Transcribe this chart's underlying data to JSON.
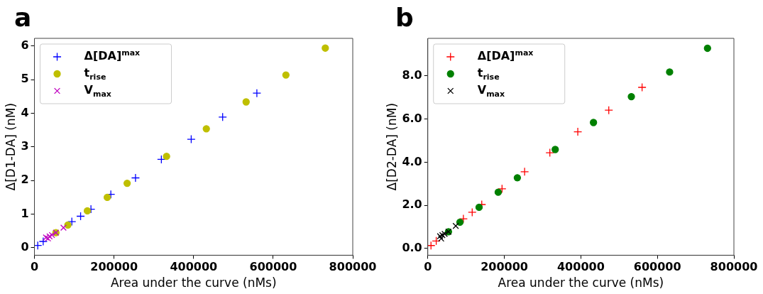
{
  "chart_data": [
    {
      "type": "scatter",
      "title": "a",
      "xlabel": "Area under the curve (nMs)",
      "ylabel": "Δ[D1-DA] (nM)",
      "xlim": [
        0,
        800000
      ],
      "ylim": [
        -0.22,
        6.23
      ],
      "xticks": [
        0,
        200000,
        400000,
        600000,
        800000
      ],
      "yticks": [
        0,
        1,
        2,
        3,
        4,
        5,
        6
      ],
      "grid": false,
      "legend": "top left",
      "series": [
        {
          "name": "Δ[DA]$^{max}$",
          "color": "#0000ff",
          "marker": "plus",
          "x": [
            8300,
            22000,
            94000,
            116000,
            142000,
            192000,
            254000,
            319000,
            394000,
            473000,
            559000
          ],
          "values": [
            0.07,
            0.19,
            0.78,
            0.94,
            1.15,
            1.59,
            2.08,
            2.63,
            3.23,
            3.89,
            4.6
          ]
        },
        {
          "name": "t$_{rise}$",
          "color": "#bfbf00",
          "marker": "circle",
          "x": [
            54000,
            84000,
            133000,
            183000,
            233000,
            332000,
            432000,
            532000,
            632000,
            731000
          ],
          "values": [
            0.45,
            0.68,
            1.1,
            1.5,
            1.92,
            2.72,
            3.54,
            4.34,
            5.14,
            5.94
          ]
        },
        {
          "name": "V$_{max}$",
          "color": "#bf00bf",
          "marker": "cross",
          "x": [
            29000,
            34000,
            38000,
            44000,
            54000,
            73000
          ],
          "values": [
            0.31,
            0.28,
            0.34,
            0.38,
            0.45,
            0.6
          ]
        }
      ]
    },
    {
      "type": "scatter",
      "title": "b",
      "xlabel": "Area under the curve (nMs)",
      "ylabel": "Δ[D2-DA] (nM)",
      "xlim": [
        0,
        800000
      ],
      "ylim": [
        -0.31,
        9.74
      ],
      "xticks": [
        0,
        200000,
        400000,
        600000,
        800000
      ],
      "yticks": [
        {
          "value": 0,
          "label": "0.0"
        },
        {
          "value": 2,
          "label": "2.0"
        },
        {
          "value": 4,
          "label": "4.0"
        },
        {
          "value": 6,
          "label": "6.0"
        },
        {
          "value": 8,
          "label": "8.0"
        }
      ],
      "grid": false,
      "legend": "top left",
      "series": [
        {
          "name": "Δ[DA]$^{max}$",
          "color": "#ff0000",
          "marker": "plus",
          "x": [
            8300,
            22000,
            93000,
            116000,
            141000,
            194000,
            253000,
            319000,
            392000,
            473000,
            560000
          ],
          "values": [
            0.14,
            0.35,
            1.38,
            1.68,
            2.04,
            2.77,
            3.56,
            4.44,
            5.41,
            6.41,
            7.47
          ]
        },
        {
          "name": "t$_{rise}$",
          "color": "#008000",
          "marker": "circle",
          "x": [
            54000,
            84000,
            134000,
            184000,
            234000,
            333000,
            433000,
            532000,
            632000,
            731000
          ],
          "values": [
            0.78,
            1.22,
            1.91,
            2.61,
            3.28,
            4.59,
            5.84,
            7.04,
            8.18,
            9.28
          ]
        },
        {
          "name": "V$_{max}$",
          "color": "#000000",
          "marker": "cross",
          "x": [
            32000,
            35000,
            38000,
            44000,
            54000,
            73000
          ],
          "values": [
            0.57,
            0.46,
            0.62,
            0.68,
            0.78,
            1.05
          ]
        }
      ]
    }
  ]
}
